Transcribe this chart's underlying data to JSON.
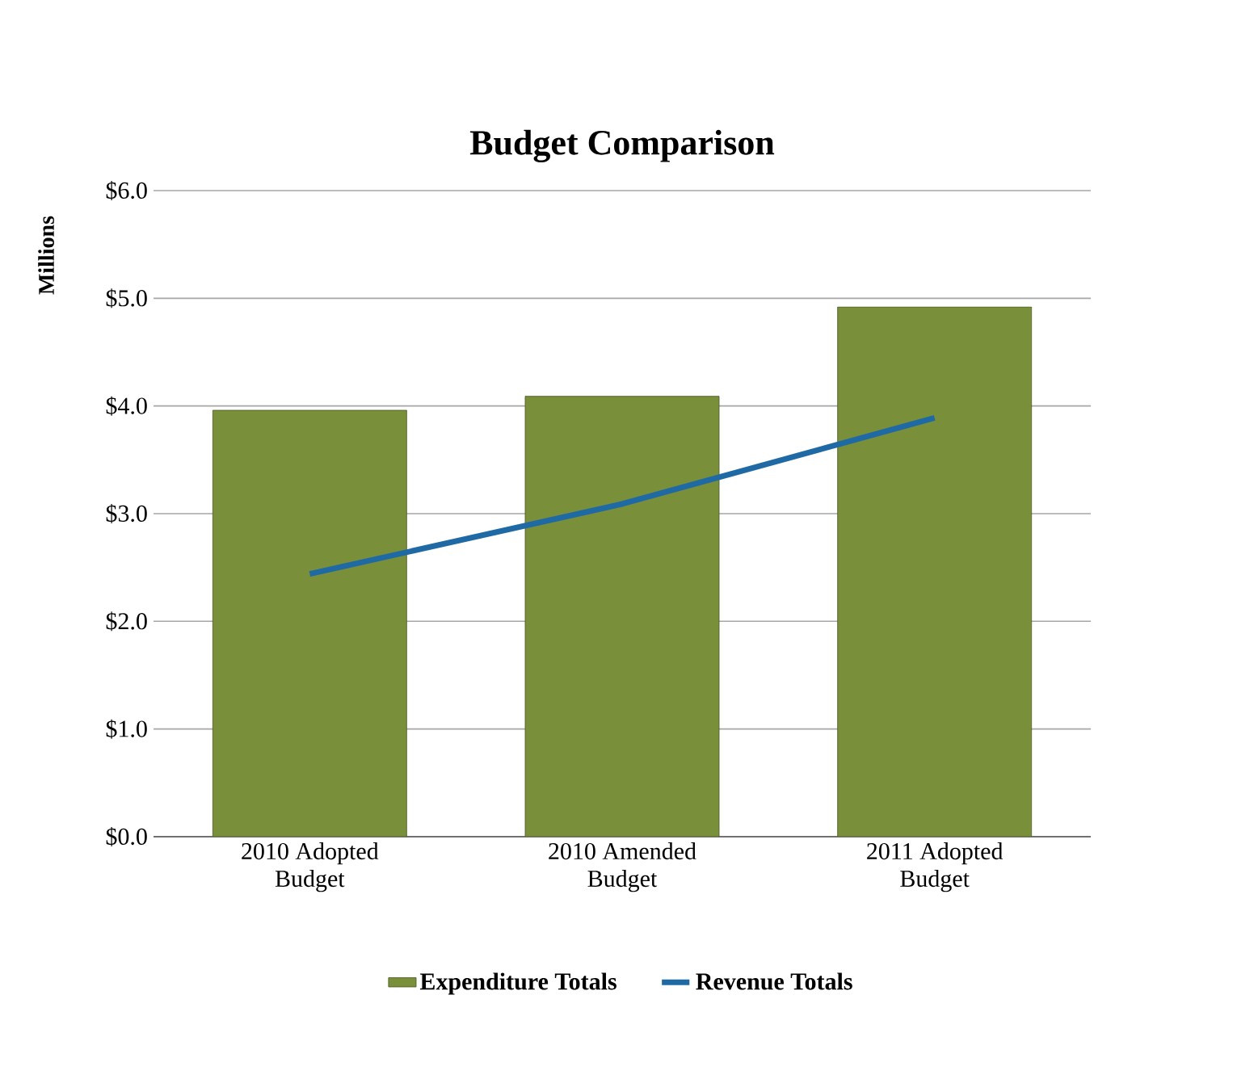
{
  "chart_data": {
    "type": "bar",
    "title": "Budget Comparison",
    "ylabel": "Millions",
    "categories": [
      "2010 Adopted\nBudget",
      "2010 Amended\nBudget",
      "2011 Adopted\nBudget"
    ],
    "series": [
      {
        "name": "Expenditure Totals",
        "color": "#7a8f3a",
        "values": [
          3.96,
          4.09,
          4.92
        ]
      },
      {
        "name": "Revenue Totals",
        "type": "line",
        "color": "#1f6aa5",
        "values": [
          2.44,
          3.09,
          3.89
        ]
      }
    ],
    "ylim": [
      0,
      6
    ],
    "yticks": [
      {
        "value": 0,
        "label": "$0.0"
      },
      {
        "value": 1,
        "label": "$1.0"
      },
      {
        "value": 2,
        "label": "$2.0"
      },
      {
        "value": 3,
        "label": "$3.0"
      },
      {
        "value": 4,
        "label": "$4.0"
      },
      {
        "value": 5,
        "label": "$5.0"
      },
      {
        "value": 6,
        "label": "$6.0"
      }
    ],
    "grid": "y",
    "legend": "bottom",
    "marker": "none"
  }
}
